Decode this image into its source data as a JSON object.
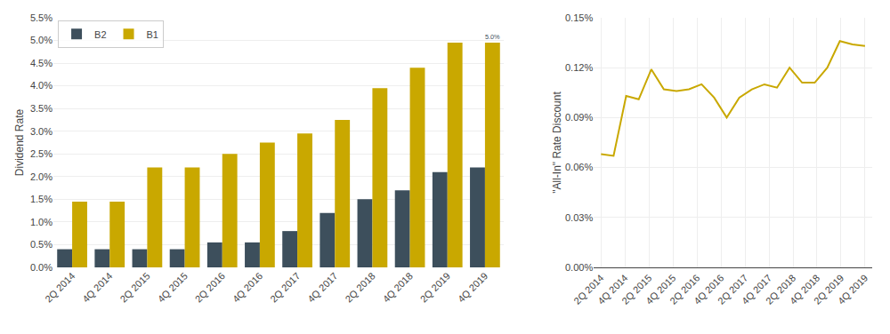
{
  "chart_data": [
    {
      "type": "bar",
      "categories": [
        "2Q 2014",
        "4Q 2014",
        "2Q 2015",
        "4Q 2015",
        "2Q 2016",
        "4Q 2016",
        "2Q 2017",
        "4Q 2017",
        "2Q 2018",
        "4Q 2018",
        "2Q 2019",
        "4Q 2019"
      ],
      "series": [
        {
          "name": "B2",
          "color": "#3d4f5c",
          "values": [
            0.004,
            0.004,
            0.004,
            0.004,
            0.0055,
            0.0055,
            0.008,
            0.012,
            0.015,
            0.017,
            0.021,
            0.022
          ]
        },
        {
          "name": "B1",
          "color": "#c9a800",
          "values": [
            0.0145,
            0.0145,
            0.022,
            0.022,
            0.025,
            0.0275,
            0.0295,
            0.0325,
            0.0395,
            0.044,
            0.0495,
            0.0495
          ],
          "value_labels": [
            null,
            null,
            null,
            null,
            null,
            null,
            null,
            null,
            null,
            null,
            null,
            "5.0%"
          ]
        }
      ],
      "ylabel": "Dividend Rate",
      "ylim": [
        0,
        0.055
      ],
      "yticks": [
        {
          "value": 0.0,
          "label": "0.0%"
        },
        {
          "value": 0.005,
          "label": "0.5%"
        },
        {
          "value": 0.01,
          "label": "1.0%"
        },
        {
          "value": 0.015,
          "label": "1.5%"
        },
        {
          "value": 0.02,
          "label": "2.0%"
        },
        {
          "value": 0.025,
          "label": "2.5%"
        },
        {
          "value": 0.03,
          "label": "3.0%"
        },
        {
          "value": 0.035,
          "label": "3.5%"
        },
        {
          "value": 0.04,
          "label": "4.0%"
        },
        {
          "value": 0.045,
          "label": "4.5%"
        },
        {
          "value": 0.05,
          "label": "5.0%"
        },
        {
          "value": 0.055,
          "label": "5.5%"
        }
      ],
      "grid": "y",
      "legend": "upper left",
      "data_labels": true
    },
    {
      "type": "line",
      "x": [
        0,
        0.5238095238095238,
        1.0476190476190477,
        1.5714285714285714,
        2.0952380952380953,
        2.619047619047619,
        3.142857142857143,
        3.6666666666666665,
        4.190476190476191,
        4.714285714285714,
        5.238095238095238,
        5.761904761904762,
        6.285714285714286,
        6.809523809523809,
        7.333333333333333,
        7.857142857142857,
        8.380952380952381,
        8.904761904761905,
        9.428571428571429,
        9.952380952380953,
        10.476190476190476,
        11
      ],
      "series": [
        {
          "color": "#c9a800",
          "values": [
            0.00068,
            0.00067,
            0.00103,
            0.00101,
            0.00119,
            0.00107,
            0.00106,
            0.00107,
            0.0011,
            0.00102,
            0.0009,
            0.00102,
            0.00107,
            0.0011,
            0.00108,
            0.0012,
            0.00111,
            0.00111,
            0.0012,
            0.00136,
            0.00134,
            0.00133
          ]
        }
      ],
      "ylabel": "\"All-In\" Rate Discount",
      "xlim": [
        -0.3,
        11.3
      ],
      "xticks": [
        {
          "value": 0,
          "label": "2Q 2014"
        },
        {
          "value": 1,
          "label": "4Q 2014"
        },
        {
          "value": 2,
          "label": "2Q 2015"
        },
        {
          "value": 3,
          "label": "4Q 2015"
        },
        {
          "value": 4,
          "label": "2Q 2016"
        },
        {
          "value": 5,
          "label": "4Q 2016"
        },
        {
          "value": 6,
          "label": "2Q 2017"
        },
        {
          "value": 7,
          "label": "4Q 2017"
        },
        {
          "value": 8,
          "label": "2Q 2018"
        },
        {
          "value": 9,
          "label": "4Q 2018"
        },
        {
          "value": 10,
          "label": "2Q 2019"
        },
        {
          "value": 11,
          "label": "4Q 2019"
        }
      ],
      "ylim": [
        0,
        0.0015
      ],
      "yticks": [
        {
          "value": 0.0,
          "label": "0.00%"
        },
        {
          "value": 0.0003,
          "label": "0.03%"
        },
        {
          "value": 0.0006,
          "label": "0.06%"
        },
        {
          "value": 0.0009,
          "label": "0.09%"
        },
        {
          "value": 0.0012,
          "label": "0.12%"
        },
        {
          "value": 0.0015,
          "label": "0.15%"
        }
      ],
      "grid": true
    }
  ]
}
